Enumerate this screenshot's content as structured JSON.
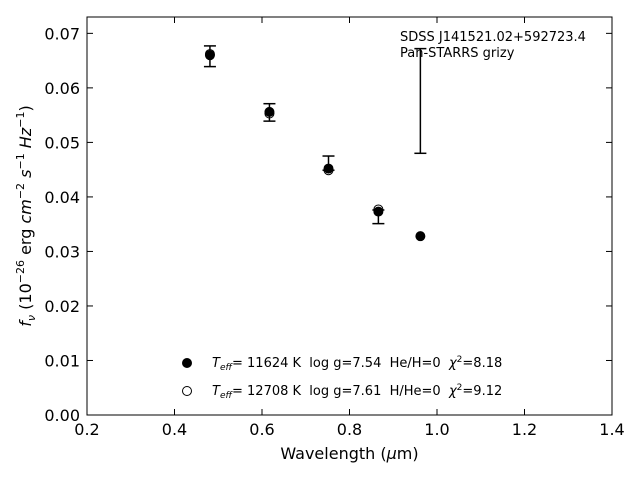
{
  "chart_data": {
    "type": "scatter",
    "title": "",
    "xlabel": "Wavelength (μm)",
    "ylabel": "fν (10⁻²⁶ erg cm⁻² s⁻¹ Hz⁻¹)",
    "xlim": [
      0.2,
      1.4
    ],
    "ylim": [
      0.0,
      0.073
    ],
    "xticks": [
      "0.2",
      "0.4",
      "0.6",
      "0.8",
      "1.0",
      "1.2",
      "1.4"
    ],
    "yticks": [
      "0.00",
      "0.01",
      "0.02",
      "0.03",
      "0.04",
      "0.05",
      "0.06",
      "0.07"
    ],
    "annotation": [
      "SDSS J141521.02+592723.4",
      "Pan-STARRS grizy"
    ],
    "observed": {
      "x": [
        0.481,
        0.617,
        0.752,
        0.866,
        0.962
      ],
      "y": [
        0.0658,
        0.0555,
        0.0455,
        0.0372,
        0.0575
      ],
      "yerr_low": [
        0.0658,
        0.0555,
        0.0455,
        0.0372,
        0.048
      ],
      "yerr_high": [
        0.0677,
        0.0571,
        0.0475,
        0.0376,
        0.0672
      ],
      "err_low": [
        0.0639,
        0.0539,
        0.0449,
        0.0351,
        0.048
      ]
    },
    "series": [
      {
        "marker": "filled",
        "label": "T_eff= 11624 K  log g=7.54  He/H=0  χ²=8.18",
        "legend": {
          "t": "T",
          "sub": "eff",
          "rest": "= 11624 K  log g=7.54  He/H=0  ",
          "chi": "χ",
          "sup": "2",
          "end": "=8.18"
        },
        "x": [
          0.481,
          0.617,
          0.752,
          0.866,
          0.962
        ],
        "y": [
          0.066,
          0.0556,
          0.0452,
          0.0373,
          0.0328
        ]
      },
      {
        "marker": "open",
        "label": "T_eff= 12708 K  log g=7.61  H/He=0  χ²=9.12",
        "legend": {
          "t": "T",
          "sub": "eff",
          "rest": "= 12708 K  log g=7.61  H/He=0  ",
          "chi": "χ",
          "sup": "2",
          "end": "=9.12"
        },
        "x": [
          0.481,
          0.617,
          0.752,
          0.866
        ],
        "y": [
          0.0662,
          0.0553,
          0.0449,
          0.0377
        ]
      }
    ],
    "legend_position": "bottom-left",
    "grid": false
  }
}
